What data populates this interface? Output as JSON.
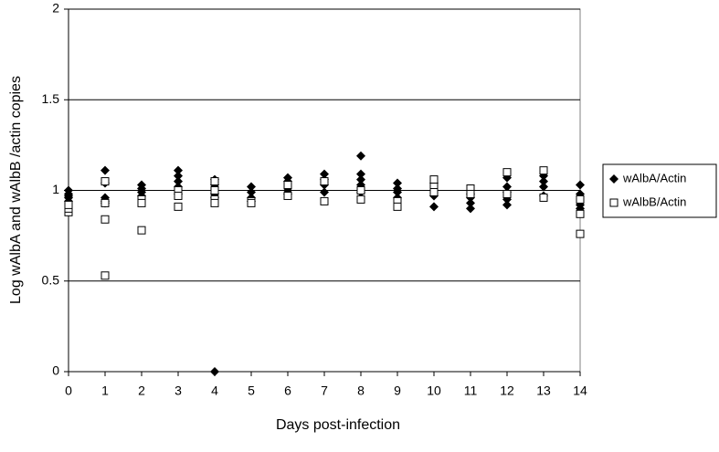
{
  "chart_data": {
    "type": "scatter",
    "x_label": "Days post-infection",
    "y_label": "Log wAlbA and wAlbB  /actin copies",
    "xlim": [
      0,
      14
    ],
    "xticks": [
      0,
      1,
      2,
      3,
      4,
      5,
      6,
      7,
      8,
      9,
      10,
      11,
      12,
      13,
      14
    ],
    "ylim": [
      0,
      2
    ],
    "yticks": [
      0,
      0.5,
      1,
      1.5,
      2
    ],
    "grid": true,
    "legend": "right",
    "series": [
      {
        "name": "wAlbA/Actin",
        "color": "#000000",
        "marker": "diamond",
        "x": [
          0,
          0,
          0,
          0,
          0,
          1,
          1,
          1,
          1,
          1,
          2,
          2,
          2,
          2,
          3,
          3,
          3,
          3,
          3,
          4,
          4,
          4,
          4,
          4,
          4,
          5,
          5,
          5,
          5,
          6,
          6,
          6,
          6,
          7,
          7,
          7,
          7,
          8,
          8,
          8,
          8,
          8,
          9,
          9,
          9,
          9,
          10,
          10,
          10,
          10,
          11,
          11,
          11,
          11,
          12,
          12,
          12,
          12,
          12,
          13,
          13,
          13,
          13,
          14,
          14,
          14,
          14
        ],
        "values": [
          1.0,
          0.98,
          0.96,
          0.94,
          0.97,
          1.11,
          1.04,
          0.96,
          0.94,
          0.93,
          1.03,
          1.01,
          0.99,
          0.97,
          1.11,
          1.08,
          1.05,
          1.02,
          0.98,
          1.06,
          1.03,
          1.0,
          0.98,
          0.96,
          0,
          1.02,
          0.99,
          0.96,
          0.94,
          1.07,
          1.05,
          1.0,
          0.98,
          1.09,
          1.06,
          1.03,
          0.99,
          1.19,
          1.09,
          1.06,
          1.03,
          0.99,
          1.04,
          1.01,
          0.99,
          0.96,
          1.04,
          1.0,
          0.97,
          0.91,
          0.98,
          0.96,
          0.93,
          0.9,
          1.07,
          1.02,
          0.99,
          0.95,
          0.92,
          1.08,
          1.05,
          1.02,
          0.97,
          1.03,
          0.98,
          0.92,
          0.9
        ]
      },
      {
        "name": "wAlbB/Actin",
        "color": "#000000",
        "marker": "square",
        "x": [
          0,
          0,
          0,
          1,
          1,
          1,
          1,
          2,
          2,
          2,
          3,
          3,
          3,
          4,
          4,
          4,
          4,
          5,
          5,
          6,
          6,
          7,
          7,
          8,
          8,
          9,
          9,
          10,
          10,
          10,
          11,
          11,
          12,
          12,
          13,
          13,
          14,
          14,
          14
        ],
        "values": [
          0.88,
          0.9,
          0.92,
          1.05,
          0.93,
          0.84,
          0.53,
          0.95,
          0.93,
          0.78,
          1.0,
          0.97,
          0.91,
          1.05,
          1.0,
          0.95,
          0.93,
          0.94,
          0.93,
          1.03,
          0.97,
          1.05,
          0.94,
          1.0,
          0.95,
          0.94,
          0.91,
          1.06,
          1.02,
          0.99,
          1.01,
          0.98,
          1.1,
          0.98,
          1.11,
          0.96,
          0.95,
          0.87,
          0.76
        ]
      }
    ]
  }
}
